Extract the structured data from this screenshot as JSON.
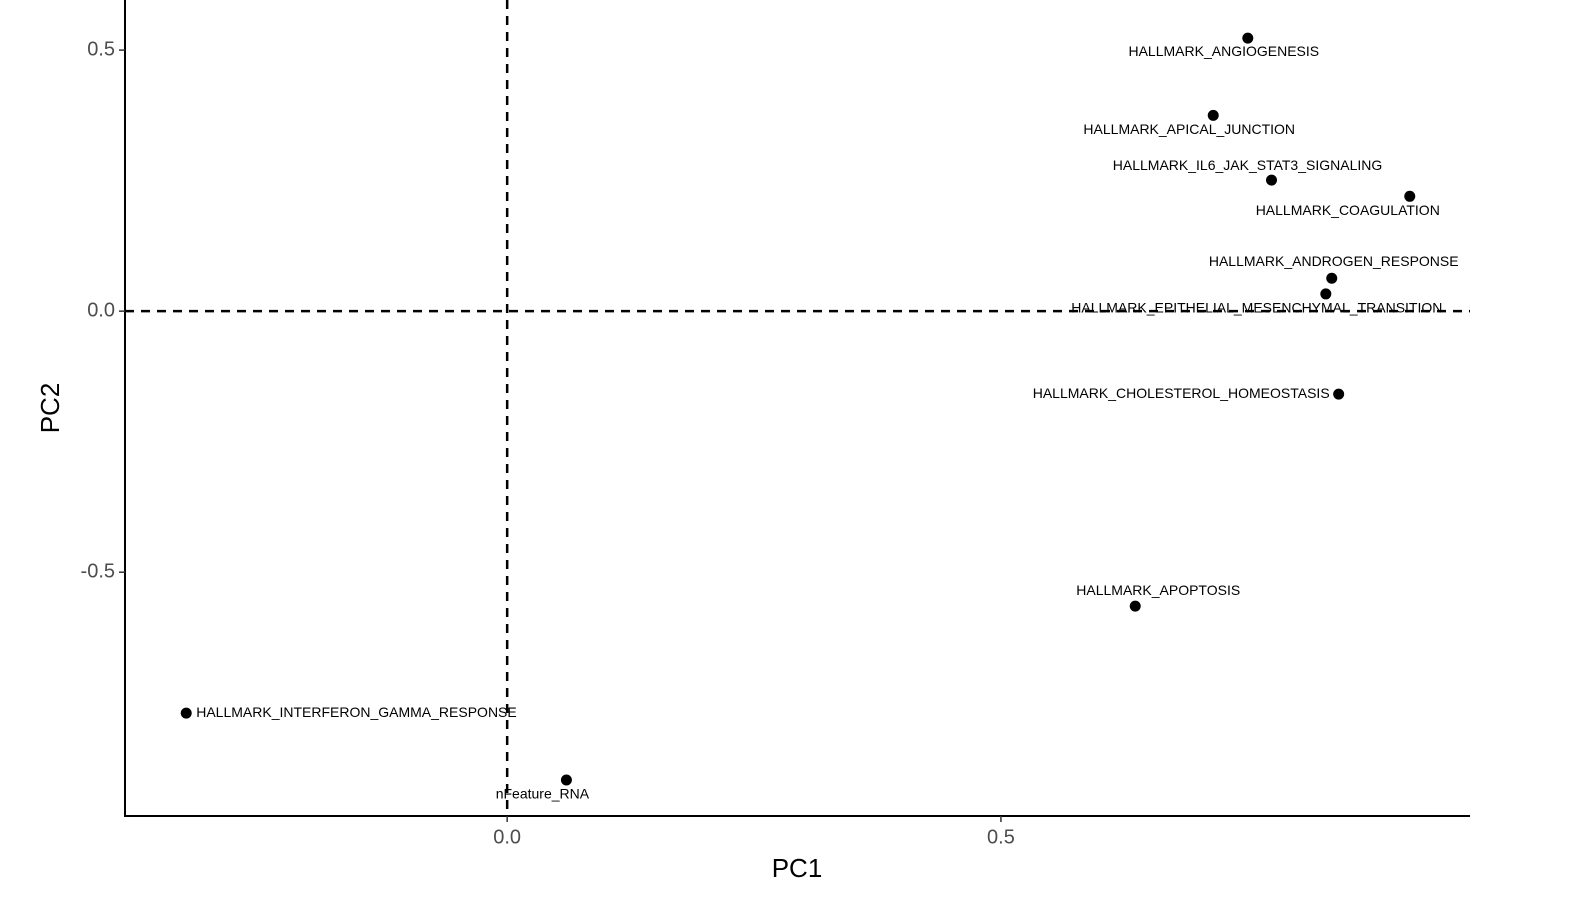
{
  "chart_data": {
    "type": "scatter",
    "x_label": "PC1",
    "y_label": "PC2",
    "labels": [
      "HALLMARK_ANGIOGENESIS",
      "HALLMARK_APICAL_JUNCTION",
      "HALLMARK_IL6_JAK_STAT3_SIGNALING",
      "HALLMARK_COAGULATION",
      "HALLMARK_ANDROGEN_RESPONSE",
      "HALLMARK_EPITHELIAL_MESENCHYMAL_TRANSITION",
      "HALLMARK_CHOLESTEROL_HOMEOSTASIS",
      "HALLMARK_APOPTOSIS",
      "HALLMARK_INTERFERON_GAMMA_RESPONSE",
      "nFeature_RNA"
    ],
    "x": [
      0.75,
      0.715,
      0.774,
      0.914,
      0.835,
      0.829,
      0.842,
      0.636,
      -0.325,
      0.06
    ],
    "values": [
      0.523,
      0.375,
      0.251,
      0.22,
      0.063,
      0.033,
      -0.159,
      -0.565,
      -0.77,
      -0.898
    ],
    "color": "#000000",
    "xlim": [
      -0.387,
      0.975
    ],
    "ylim": [
      -0.967,
      0.596
    ],
    "xticks": [
      {
        "value": 0,
        "label": "0.0"
      },
      0.5
    ],
    "yticks": [
      -0.5,
      {
        "value": 0,
        "label": "0.0"
      },
      0.5
    ],
    "hline": 0,
    "vline": 0
  }
}
